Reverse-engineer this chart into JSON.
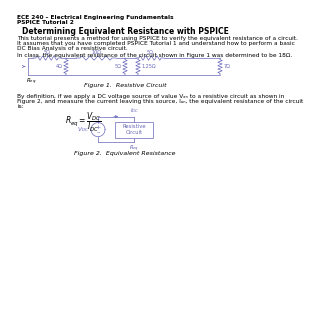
{
  "background_color": "#ffffff",
  "header_line1": "ECE 240 – Electrical Engineering Fundamentals",
  "header_line2": "PSPICE Tutorial 2",
  "title": "Determining Equivalent Resistance with PSPICE",
  "para1_l1": "This tutorial presents a method for using PSPICE to verify the equivalent resistance of a circuit.",
  "para1_l2": "It assumes that you have completed PSPICE Tutorial 1 and understand how to perform a basic",
  "para1_l3": "DC Bias Analysis of a resistive circuit.",
  "para2": "In class, the equivalent resistance of the circuit shown in Figure 1 was determined to be 18Ω.",
  "figure1_caption": "Figure 1.  Resistive Circuit",
  "para3_l1": "By definition, if we apply a DC voltage source of value Vₐₙ to a resistive circuit as shown in",
  "para3_l2": "Figure 2, and measure the current leaving this source, Iₐₙ, the equivalent resistance of the circuit",
  "para3_l3": "is:",
  "figure2_caption": "Figure 2.  Equivalent Resistance",
  "text_color": "#000000",
  "circuit_color": "#6666bb",
  "fs_header": 4.2,
  "fs_title": 5.5,
  "fs_body": 4.2,
  "fs_caption": 4.5,
  "fs_circuit_label": 3.5,
  "fs_eq": 5.5
}
